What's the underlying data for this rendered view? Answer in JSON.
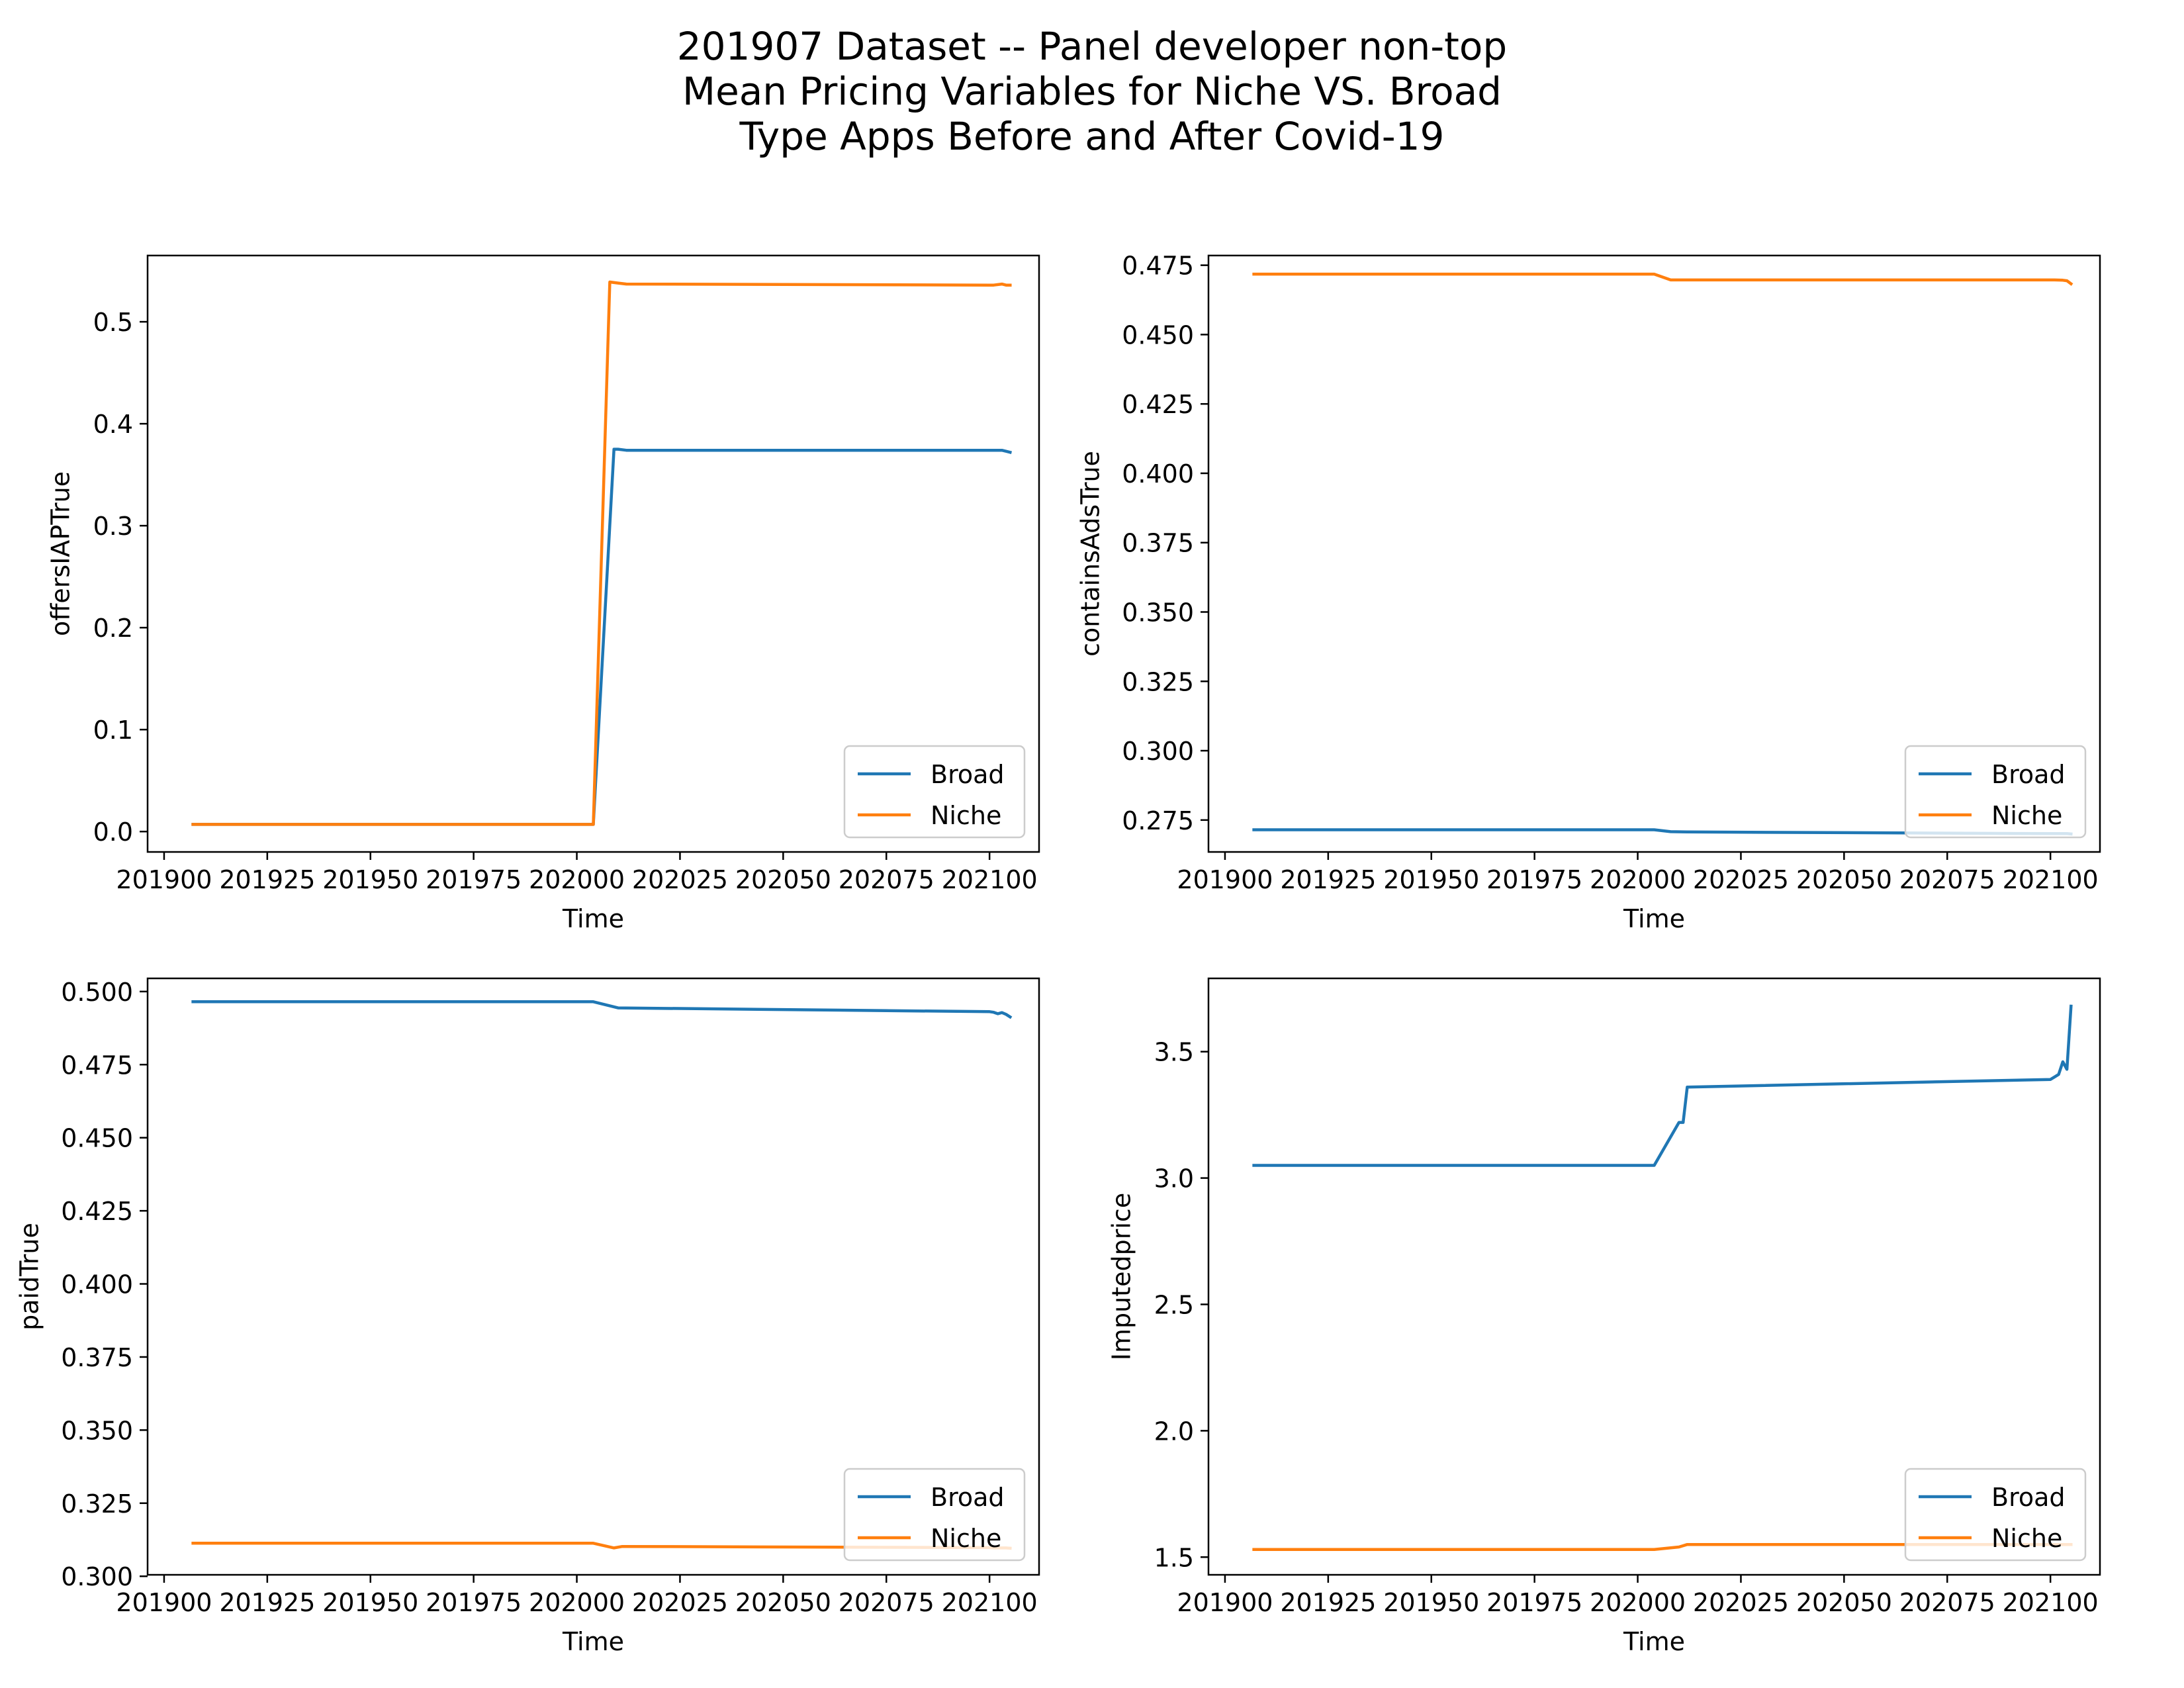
{
  "figure": {
    "title_lines": [
      "201907 Dataset -- Panel developer non-top",
      "Mean Pricing Variables for Niche VS. Broad",
      "Type Apps Before and After Covid-19"
    ]
  },
  "colors": {
    "Broad": "#1f77b4",
    "Niche": "#ff7f0e"
  },
  "chart_data": [
    {
      "type": "line",
      "xlabel": "Time",
      "ylabel": "offersIAPTrue",
      "xlim": [
        201896,
        202112
      ],
      "ylim": [
        -0.02,
        0.565
      ],
      "xticks": [
        201900,
        201925,
        201950,
        201975,
        202000,
        202025,
        202050,
        202075,
        202100
      ],
      "xtick_labels": [
        "201900",
        "201925",
        "201950",
        "201975",
        "202000",
        "202025",
        "202050",
        "202075",
        "202100"
      ],
      "yticks": [
        0.0,
        0.1,
        0.2,
        0.3,
        0.4,
        0.5
      ],
      "ytick_labels": [
        "0.0",
        "0.1",
        "0.2",
        "0.3",
        "0.4",
        "0.5"
      ],
      "legend": {
        "position": "lower-right",
        "entries": [
          "Broad",
          "Niche"
        ]
      },
      "series": [
        {
          "name": "Broad",
          "x": [
            201907,
            202004,
            202009,
            202010,
            202012,
            202100,
            202101,
            202103,
            202104,
            202105
          ],
          "y": [
            0.007,
            0.007,
            0.375,
            0.375,
            0.374,
            0.374,
            0.374,
            0.374,
            0.373,
            0.372
          ]
        },
        {
          "name": "Niche",
          "x": [
            201907,
            202004,
            202008,
            202010,
            202012,
            202100,
            202101,
            202103,
            202104,
            202105
          ],
          "y": [
            0.007,
            0.007,
            0.539,
            0.538,
            0.537,
            0.536,
            0.536,
            0.537,
            0.536,
            0.536
          ]
        }
      ]
    },
    {
      "type": "line",
      "xlabel": "Time",
      "ylabel": "containsAdsTrue",
      "xlim": [
        201896,
        202112
      ],
      "ylim": [
        0.2635,
        0.4785
      ],
      "xticks": [
        201900,
        201925,
        201950,
        201975,
        202000,
        202025,
        202050,
        202075,
        202100
      ],
      "xtick_labels": [
        "201900",
        "201925",
        "201950",
        "201975",
        "202000",
        "202025",
        "202050",
        "202075",
        "202100"
      ],
      "yticks": [
        0.275,
        0.3,
        0.325,
        0.35,
        0.375,
        0.4,
        0.425,
        0.45,
        0.475
      ],
      "ytick_labels": [
        "0.275",
        "0.300",
        "0.325",
        "0.350",
        "0.375",
        "0.400",
        "0.425",
        "0.450",
        "0.475"
      ],
      "legend": {
        "position": "lower-right",
        "entries": [
          "Broad",
          "Niche"
        ]
      },
      "series": [
        {
          "name": "Broad",
          "x": [
            201907,
            202004,
            202008,
            202012,
            202100,
            202101,
            202103,
            202104,
            202105
          ],
          "y": [
            0.2715,
            0.2715,
            0.2708,
            0.2707,
            0.2701,
            0.2701,
            0.2701,
            0.2701,
            0.27
          ]
        },
        {
          "name": "Niche",
          "x": [
            201907,
            202004,
            202008,
            202012,
            202100,
            202101,
            202103,
            202104,
            202105
          ],
          "y": [
            0.4718,
            0.4718,
            0.4697,
            0.4697,
            0.4697,
            0.4697,
            0.4696,
            0.4694,
            0.4683
          ]
        }
      ]
    },
    {
      "type": "line",
      "xlabel": "Time",
      "ylabel": "paidTrue",
      "xlim": [
        201896,
        202112
      ],
      "ylim": [
        0.3005,
        0.5045
      ],
      "xticks": [
        201900,
        201925,
        201950,
        201975,
        202000,
        202025,
        202050,
        202075,
        202100
      ],
      "xtick_labels": [
        "201900",
        "201925",
        "201950",
        "201975",
        "202000",
        "202025",
        "202050",
        "202075",
        "202100"
      ],
      "yticks": [
        0.3,
        0.325,
        0.35,
        0.375,
        0.4,
        0.425,
        0.45,
        0.475,
        0.5
      ],
      "ytick_labels": [
        "0.300",
        "0.325",
        "0.350",
        "0.375",
        "0.400",
        "0.425",
        "0.450",
        "0.475",
        "0.500"
      ],
      "legend": {
        "position": "lower-right",
        "entries": [
          "Broad",
          "Niche"
        ]
      },
      "series": [
        {
          "name": "Broad",
          "x": [
            201907,
            202004,
            202010,
            202100,
            202101,
            202102,
            202103,
            202104,
            202105
          ],
          "y": [
            0.4965,
            0.4965,
            0.4944,
            0.4931,
            0.4929,
            0.4924,
            0.4928,
            0.4922,
            0.4913
          ]
        },
        {
          "name": "Niche",
          "x": [
            201907,
            202004,
            202009,
            202011,
            202100,
            202101,
            202103,
            202104,
            202105
          ],
          "y": [
            0.3113,
            0.3113,
            0.3097,
            0.3102,
            0.3098,
            0.3097,
            0.3097,
            0.3097,
            0.3096
          ]
        }
      ]
    },
    {
      "type": "line",
      "xlabel": "Time",
      "ylabel": "Imputedprice",
      "xlim": [
        201896,
        202112
      ],
      "ylim": [
        1.43,
        3.79
      ],
      "xticks": [
        201900,
        201925,
        201950,
        201975,
        202000,
        202025,
        202050,
        202075,
        202100
      ],
      "xtick_labels": [
        "201900",
        "201925",
        "201950",
        "201975",
        "202000",
        "202025",
        "202050",
        "202075",
        "202100"
      ],
      "yticks": [
        1.5,
        2.0,
        2.5,
        3.0,
        3.5
      ],
      "ytick_labels": [
        "1.5",
        "2.0",
        "2.5",
        "3.0",
        "3.5"
      ],
      "legend": {
        "position": "lower-right",
        "entries": [
          "Broad",
          "Niche"
        ]
      },
      "series": [
        {
          "name": "Broad",
          "x": [
            201907,
            202004,
            202010,
            202011,
            202012,
            202100,
            202101,
            202102,
            202103,
            202104,
            202105
          ],
          "y": [
            3.05,
            3.05,
            3.22,
            3.22,
            3.36,
            3.39,
            3.4,
            3.41,
            3.46,
            3.43,
            3.68
          ]
        },
        {
          "name": "Niche",
          "x": [
            201907,
            202004,
            202010,
            202012,
            202100,
            202101,
            202103,
            202104,
            202105
          ],
          "y": [
            1.53,
            1.53,
            1.54,
            1.55,
            1.55,
            1.55,
            1.55,
            1.55,
            1.55
          ]
        }
      ]
    }
  ]
}
